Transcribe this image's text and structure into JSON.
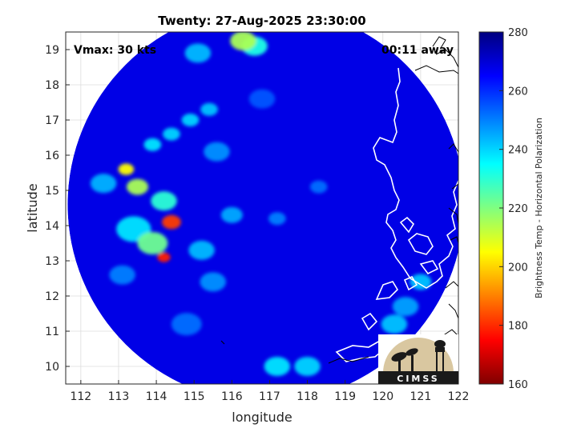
{
  "chart_data": {
    "type": "heatmap",
    "title": "Twenty: 27-Aug-2025 23:30:00",
    "xlabel": "longitude",
    "ylabel": "latitude",
    "xlim": [
      111.6,
      122
    ],
    "ylim": [
      9.5,
      19.5
    ],
    "xticks": [
      "112",
      "113",
      "114",
      "115",
      "116",
      "117",
      "118",
      "119",
      "120",
      "121",
      "122"
    ],
    "yticks": [
      "10",
      "11",
      "12",
      "13",
      "14",
      "15",
      "16",
      "17",
      "18",
      "19"
    ],
    "grid": true,
    "annotations": {
      "vmax": "Vmax: 30 kts",
      "time_away": "00:11 away"
    },
    "colorbar": {
      "label": "Brightness Temp - Horizontal Polarization",
      "range": [
        160,
        280
      ],
      "ticks": [
        "280",
        "260",
        "240",
        "220",
        "200",
        "180",
        "160"
      ],
      "colormap": [
        "#800000",
        "#ff0000",
        "#ff8000",
        "#ffff00",
        "#80ff80",
        "#00ffff",
        "#0080ff",
        "#0000ff",
        "#000080"
      ]
    },
    "swath": {
      "center_lon": 116.9,
      "center_lat": 14.6,
      "radius_deg": 5.25
    },
    "background_value": 268,
    "features": [
      {
        "lon": 114.4,
        "lat": 14.1,
        "value": 182,
        "spread": 0.22
      },
      {
        "lon": 114.2,
        "lat": 13.1,
        "value": 178,
        "spread": 0.15
      },
      {
        "lon": 113.2,
        "lat": 15.6,
        "value": 205,
        "spread": 0.18
      },
      {
        "lon": 113.5,
        "lat": 15.1,
        "value": 215,
        "spread": 0.25
      },
      {
        "lon": 113.9,
        "lat": 13.5,
        "value": 222,
        "spread": 0.35
      },
      {
        "lon": 114.2,
        "lat": 14.7,
        "value": 230,
        "spread": 0.3
      },
      {
        "lon": 113.4,
        "lat": 13.9,
        "value": 238,
        "spread": 0.4
      },
      {
        "lon": 113.9,
        "lat": 16.3,
        "value": 238,
        "spread": 0.2
      },
      {
        "lon": 114.4,
        "lat": 16.6,
        "value": 240,
        "spread": 0.2
      },
      {
        "lon": 114.9,
        "lat": 17.0,
        "value": 240,
        "spread": 0.2
      },
      {
        "lon": 115.4,
        "lat": 17.3,
        "value": 242,
        "spread": 0.2
      },
      {
        "lon": 115.6,
        "lat": 16.1,
        "value": 248,
        "spread": 0.3
      },
      {
        "lon": 116.0,
        "lat": 14.3,
        "value": 245,
        "spread": 0.25
      },
      {
        "lon": 115.2,
        "lat": 13.3,
        "value": 243,
        "spread": 0.3
      },
      {
        "lon": 115.5,
        "lat": 12.4,
        "value": 248,
        "spread": 0.3
      },
      {
        "lon": 116.3,
        "lat": 19.25,
        "value": 215,
        "spread": 0.3
      },
      {
        "lon": 116.6,
        "lat": 19.1,
        "value": 232,
        "spread": 0.3
      },
      {
        "lon": 115.1,
        "lat": 18.9,
        "value": 243,
        "spread": 0.3
      },
      {
        "lon": 117.2,
        "lat": 10.0,
        "value": 238,
        "spread": 0.3
      },
      {
        "lon": 118.0,
        "lat": 10.0,
        "value": 240,
        "spread": 0.3
      },
      {
        "lon": 120.3,
        "lat": 11.2,
        "value": 242,
        "spread": 0.3
      },
      {
        "lon": 121.0,
        "lat": 12.4,
        "value": 242,
        "spread": 0.25
      },
      {
        "lon": 120.6,
        "lat": 11.7,
        "value": 246,
        "spread": 0.3
      },
      {
        "lon": 117.2,
        "lat": 14.2,
        "value": 250,
        "spread": 0.2
      },
      {
        "lon": 118.3,
        "lat": 15.1,
        "value": 252,
        "spread": 0.2
      },
      {
        "lon": 112.6,
        "lat": 15.2,
        "value": 244,
        "spread": 0.3
      },
      {
        "lon": 113.1,
        "lat": 12.6,
        "value": 250,
        "spread": 0.3
      },
      {
        "lon": 114.8,
        "lat": 11.2,
        "value": 252,
        "spread": 0.35
      },
      {
        "lon": 116.8,
        "lat": 17.6,
        "value": 255,
        "spread": 0.3
      }
    ],
    "logo": {
      "text": "CIMSS"
    }
  }
}
